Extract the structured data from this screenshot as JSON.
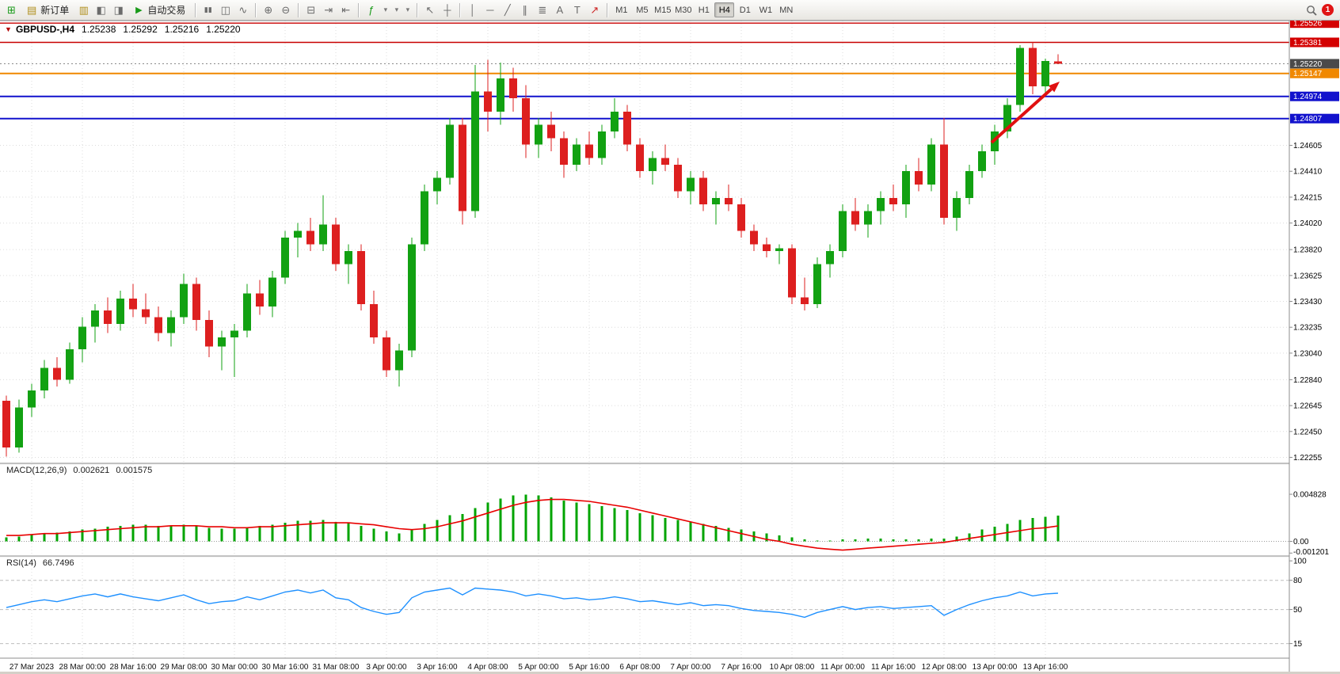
{
  "toolbar": {
    "new_order_label": "新订单",
    "autotrading_label": "自动交易",
    "timeframes": [
      "M1",
      "M5",
      "M15",
      "M30",
      "H1",
      "H4",
      "D1",
      "W1",
      "MN"
    ],
    "active_timeframe": "H4",
    "notification_count": "1"
  },
  "icons": {
    "new_chart": "⊞",
    "new_order": "▤",
    "profiles": "▥",
    "market_watch": "◧",
    "navigator": "◨",
    "autotrade": "▶",
    "bar_chart": "▮▮",
    "candle_chart": "◫",
    "line_chart": "∿",
    "zoom_in": "⊕",
    "zoom_out": "⊖",
    "tile_windows": "⊟",
    "auto_scroll": "⇥",
    "chart_shift": "⇤",
    "indicators": "ƒ",
    "dropdown": "▾",
    "cursor": "↖",
    "crosshair": "┼",
    "vertical_line": "│",
    "horizontal_line": "─",
    "trendline": "╱",
    "parallel_channel": "∥",
    "fibonacci": "≣",
    "text": "A",
    "text_label": "T",
    "arrows": "↗",
    "one_click": "▼"
  },
  "chart": {
    "title": "GBPUSD-,H4"
  },
  "chart_data": {
    "type": "candlestick",
    "symbol": "GBPUSD-",
    "period": "H4",
    "current": {
      "open": "1.25238",
      "high": "1.25292",
      "low": "1.25216",
      "close": "1.25220"
    },
    "up_color": "#12a112",
    "down_color": "#dd1f1f",
    "price_axis": {
      "ylim": [
        1.2221,
        1.25545
      ],
      "labels": [
        "1.24605",
        "1.24410",
        "1.24215",
        "1.24020",
        "1.23820",
        "1.23625",
        "1.23430",
        "1.23235",
        "1.23040",
        "1.22840",
        "1.22645",
        "1.22450",
        "1.22255"
      ],
      "tagged": [
        {
          "value": "1.25526",
          "price": 1.25526,
          "color": "#d40000"
        },
        {
          "value": "1.25381",
          "price": 1.25381,
          "color": "#d40000"
        },
        {
          "value": "1.25220",
          "price": 1.2522,
          "color": "#4a4a4a"
        },
        {
          "value": "1.25147",
          "price": 1.25147,
          "color": "#f08800"
        },
        {
          "value": "1.24974",
          "price": 1.24974,
          "color": "#1212cd"
        },
        {
          "value": "1.24807",
          "price": 1.24807,
          "color": "#1212cd"
        }
      ]
    },
    "x_labels": [
      "27 Mar 2023",
      "28 Mar 00:00",
      "28 Mar 16:00",
      "29 Mar 08:00",
      "30 Mar 00:00",
      "30 Mar 16:00",
      "31 Mar 08:00",
      "3 Apr 00:00",
      "3 Apr 16:00",
      "4 Apr 08:00",
      "5 Apr 00:00",
      "5 Apr 16:00",
      "6 Apr 08:00",
      "7 Apr 00:00",
      "7 Apr 16:00",
      "10 Apr 08:00",
      "11 Apr 00:00",
      "11 Apr 16:00",
      "12 Apr 08:00",
      "13 Apr 00:00",
      "13 Apr 16:00"
    ],
    "hlines": [
      {
        "price": 1.25526,
        "color": "#c80000",
        "width": 1.4
      },
      {
        "price": 1.25381,
        "color": "#c80000",
        "width": 1.4
      },
      {
        "price": 1.25147,
        "color": "#f08800",
        "width": 2
      },
      {
        "price": 1.24974,
        "color": "#1212cd",
        "width": 2
      },
      {
        "price": 1.24807,
        "color": "#1212cd",
        "width": 2
      }
    ],
    "current_price": 1.2522,
    "arrow": {
      "from": [
        1252,
        180
      ],
      "to": [
        1338,
        103
      ],
      "color": "#e01010"
    },
    "candles": [
      [
        1.2268,
        1.2272,
        1.2226,
        1.2233
      ],
      [
        1.2233,
        1.2269,
        1.2229,
        1.2263
      ],
      [
        1.2263,
        1.2281,
        1.2256,
        1.2276
      ],
      [
        1.2276,
        1.2299,
        1.227,
        1.2293
      ],
      [
        1.2293,
        1.2301,
        1.2279,
        1.2284
      ],
      [
        1.2284,
        1.2312,
        1.2281,
        1.2307
      ],
      [
        1.2307,
        1.2331,
        1.2297,
        1.2324
      ],
      [
        1.2324,
        1.2341,
        1.2312,
        1.2336
      ],
      [
        1.2336,
        1.2346,
        1.2319,
        1.2326
      ],
      [
        1.2326,
        1.2351,
        1.2321,
        1.2345
      ],
      [
        1.2345,
        1.2356,
        1.2331,
        1.2337
      ],
      [
        1.2337,
        1.2349,
        1.2326,
        1.2331
      ],
      [
        1.2331,
        1.2339,
        1.2313,
        1.2319
      ],
      [
        1.2319,
        1.2336,
        1.2309,
        1.2331
      ],
      [
        1.2331,
        1.2364,
        1.2326,
        1.2356
      ],
      [
        1.2356,
        1.2361,
        1.2321,
        1.2329
      ],
      [
        1.2329,
        1.2336,
        1.2301,
        1.2309
      ],
      [
        1.2309,
        1.2321,
        1.2291,
        1.2316
      ],
      [
        1.2316,
        1.2326,
        1.2286,
        1.2321
      ],
      [
        1.2321,
        1.2356,
        1.2316,
        1.2349
      ],
      [
        1.2349,
        1.2359,
        1.2333,
        1.2339
      ],
      [
        1.2339,
        1.2366,
        1.2331,
        1.2361
      ],
      [
        1.2361,
        1.2396,
        1.2356,
        1.2391
      ],
      [
        1.2391,
        1.2402,
        1.2376,
        1.2396
      ],
      [
        1.2396,
        1.2406,
        1.2381,
        1.2386
      ],
      [
        1.2386,
        1.2423,
        1.2381,
        1.2401
      ],
      [
        1.2401,
        1.2406,
        1.2366,
        1.2371
      ],
      [
        1.2371,
        1.2386,
        1.2356,
        1.2381
      ],
      [
        1.2381,
        1.2386,
        1.2336,
        1.2341
      ],
      [
        1.2341,
        1.2351,
        1.2311,
        1.2316
      ],
      [
        1.2316,
        1.2321,
        1.2286,
        1.2291
      ],
      [
        1.2291,
        1.2311,
        1.2279,
        1.2306
      ],
      [
        1.2306,
        1.2391,
        1.2301,
        1.2386
      ],
      [
        1.2386,
        1.2431,
        1.2381,
        1.2426
      ],
      [
        1.2426,
        1.2441,
        1.2416,
        1.2436
      ],
      [
        1.2436,
        1.2481,
        1.2431,
        1.2476
      ],
      [
        1.2476,
        1.2481,
        1.2401,
        1.2411
      ],
      [
        1.2411,
        1.2521,
        1.2406,
        1.2501
      ],
      [
        1.2501,
        1.2525,
        1.2471,
        1.2486
      ],
      [
        1.2486,
        1.2523,
        1.2476,
        1.2511
      ],
      [
        1.2511,
        1.2519,
        1.2486,
        1.2496
      ],
      [
        1.2496,
        1.2506,
        1.2451,
        1.2461
      ],
      [
        1.2461,
        1.2481,
        1.2451,
        1.2476
      ],
      [
        1.2476,
        1.2486,
        1.2456,
        1.2466
      ],
      [
        1.2466,
        1.2471,
        1.2436,
        1.2446
      ],
      [
        1.2446,
        1.2466,
        1.2441,
        1.2461
      ],
      [
        1.2461,
        1.2471,
        1.2446,
        1.2451
      ],
      [
        1.2451,
        1.2476,
        1.2446,
        1.2471
      ],
      [
        1.2471,
        1.2496,
        1.2466,
        1.2486
      ],
      [
        1.2486,
        1.2491,
        1.2456,
        1.2461
      ],
      [
        1.2461,
        1.2466,
        1.2436,
        1.2441
      ],
      [
        1.2441,
        1.2456,
        1.2431,
        1.2451
      ],
      [
        1.2451,
        1.2461,
        1.2441,
        1.2446
      ],
      [
        1.2446,
        1.2451,
        1.2421,
        1.2426
      ],
      [
        1.2426,
        1.2441,
        1.2416,
        1.2436
      ],
      [
        1.2436,
        1.2441,
        1.2411,
        1.2416
      ],
      [
        1.2416,
        1.2426,
        1.2401,
        1.2421
      ],
      [
        1.2421,
        1.2431,
        1.2411,
        1.2416
      ],
      [
        1.2416,
        1.2421,
        1.2391,
        1.2396
      ],
      [
        1.2396,
        1.2401,
        1.2381,
        1.2386
      ],
      [
        1.2386,
        1.2391,
        1.2376,
        1.2381
      ],
      [
        1.2381,
        1.2386,
        1.2371,
        1.2383
      ],
      [
        1.2383,
        1.2386,
        1.2341,
        1.2346
      ],
      [
        1.2346,
        1.2361,
        1.2336,
        1.2341
      ],
      [
        1.2341,
        1.2376,
        1.2338,
        1.2371
      ],
      [
        1.2371,
        1.2386,
        1.2361,
        1.2381
      ],
      [
        1.2381,
        1.2416,
        1.2376,
        1.2411
      ],
      [
        1.2411,
        1.2421,
        1.2396,
        1.2401
      ],
      [
        1.2401,
        1.2416,
        1.2391,
        1.2411
      ],
      [
        1.2411,
        1.2426,
        1.2401,
        1.2421
      ],
      [
        1.2421,
        1.2431,
        1.2411,
        1.2416
      ],
      [
        1.2416,
        1.2446,
        1.2406,
        1.2441
      ],
      [
        1.2441,
        1.2451,
        1.2426,
        1.2431
      ],
      [
        1.2431,
        1.2466,
        1.2426,
        1.2461
      ],
      [
        1.2461,
        1.2481,
        1.2401,
        1.2406
      ],
      [
        1.2406,
        1.2426,
        1.2396,
        1.2421
      ],
      [
        1.2421,
        1.2446,
        1.2416,
        1.2441
      ],
      [
        1.2441,
        1.2461,
        1.2436,
        1.2456
      ],
      [
        1.2456,
        1.2476,
        1.2446,
        1.2471
      ],
      [
        1.2471,
        1.2496,
        1.2466,
        1.2491
      ],
      [
        1.2491,
        1.2536,
        1.2486,
        1.2534
      ],
      [
        1.2534,
        1.25381,
        1.2499,
        1.2505
      ],
      [
        1.2505,
        1.2526,
        1.25,
        1.2524
      ],
      [
        1.25238,
        1.25292,
        1.25216,
        1.2522
      ]
    ],
    "macd": {
      "label": "MACD(12,26,9)",
      "value_main": "0.002621",
      "value_signal": "0.001575",
      "ylim": [
        -0.0015,
        0.008
      ],
      "hist_color": "#00a400",
      "signal_color": "#e80000",
      "axis_labels": [
        {
          "text": "0.004828",
          "value": 0.004828
        },
        {
          "text": "0.00",
          "value": 0
        },
        {
          "text": "-0.001201",
          "value": -0.001201
        }
      ],
      "histogram": [
        0.0004,
        0.0005,
        0.0007,
        0.0008,
        0.0009,
        0.001,
        0.0012,
        0.0013,
        0.0015,
        0.0016,
        0.0017,
        0.0017,
        0.0016,
        0.0016,
        0.0017,
        0.0016,
        0.0014,
        0.0013,
        0.0013,
        0.0014,
        0.0016,
        0.0017,
        0.0019,
        0.0021,
        0.0021,
        0.0022,
        0.002,
        0.0019,
        0.0016,
        0.0013,
        0.001,
        0.0008,
        0.0012,
        0.0018,
        0.0022,
        0.0027,
        0.0028,
        0.0034,
        0.004,
        0.0044,
        0.0047,
        0.0048,
        0.0047,
        0.0045,
        0.0042,
        0.004,
        0.0038,
        0.0036,
        0.0034,
        0.0032,
        0.0029,
        0.0027,
        0.0024,
        0.0022,
        0.002,
        0.0018,
        0.0016,
        0.0014,
        0.0012,
        0.001,
        0.0008,
        0.0006,
        0.0004,
        0.0002,
        0.0001,
        0.0001,
        0.0002,
        0.0002,
        0.0003,
        0.0003,
        0.0002,
        0.0002,
        0.0002,
        0.0003,
        0.0003,
        0.0005,
        0.0008,
        0.0012,
        0.0015,
        0.0018,
        0.0022,
        0.0024,
        0.0025,
        0.002621
      ],
      "signal": [
        0.0006,
        0.0006,
        0.0007,
        0.0008,
        0.0008,
        0.0009,
        0.001,
        0.0011,
        0.0012,
        0.0013,
        0.0014,
        0.0015,
        0.0015,
        0.0016,
        0.0016,
        0.0016,
        0.0015,
        0.0015,
        0.0014,
        0.0014,
        0.0015,
        0.0015,
        0.0016,
        0.0017,
        0.0018,
        0.0019,
        0.0019,
        0.0019,
        0.0018,
        0.0017,
        0.0015,
        0.0013,
        0.0012,
        0.0013,
        0.0015,
        0.0018,
        0.0021,
        0.0025,
        0.0029,
        0.0033,
        0.0037,
        0.004,
        0.0042,
        0.0043,
        0.0043,
        0.0042,
        0.0041,
        0.0039,
        0.0037,
        0.0035,
        0.0032,
        0.0029,
        0.0026,
        0.0023,
        0.002,
        0.0017,
        0.0014,
        0.0011,
        0.0008,
        0.0005,
        0.0002,
        0.0,
        -0.0003,
        -0.0005,
        -0.0007,
        -0.0008,
        -0.0009,
        -0.0008,
        -0.0007,
        -0.0006,
        -0.0005,
        -0.0004,
        -0.0003,
        -0.0002,
        -0.0001,
        0.0001,
        0.0003,
        0.0005,
        0.0007,
        0.0009,
        0.0011,
        0.0013,
        0.0014,
        0.001575
      ]
    },
    "rsi": {
      "label": "RSI(14)",
      "value": "66.7496",
      "ylim": [
        0,
        105
      ],
      "color": "#1e90ff",
      "levels": [
        80,
        50,
        15
      ],
      "axis_labels": [
        {
          "text": "100",
          "value": 100
        },
        {
          "text": "80",
          "value": 80
        },
        {
          "text": "50",
          "value": 50
        },
        {
          "text": "15",
          "value": 15
        }
      ],
      "values": [
        52,
        55,
        58,
        60,
        58,
        61,
        64,
        66,
        63,
        66,
        63,
        61,
        59,
        62,
        65,
        60,
        56,
        58,
        59,
        63,
        60,
        64,
        68,
        70,
        67,
        70,
        62,
        60,
        52,
        48,
        45,
        47,
        62,
        68,
        70,
        72,
        65,
        72,
        71,
        70,
        68,
        64,
        66,
        64,
        61,
        62,
        60,
        61,
        63,
        61,
        58,
        59,
        57,
        55,
        57,
        54,
        55,
        54,
        51,
        49,
        48,
        47,
        45,
        42,
        47,
        50,
        53,
        50,
        52,
        53,
        51,
        52,
        53,
        54,
        44,
        50,
        55,
        59,
        62,
        64,
        68,
        64,
        66,
        66.75
      ]
    }
  }
}
